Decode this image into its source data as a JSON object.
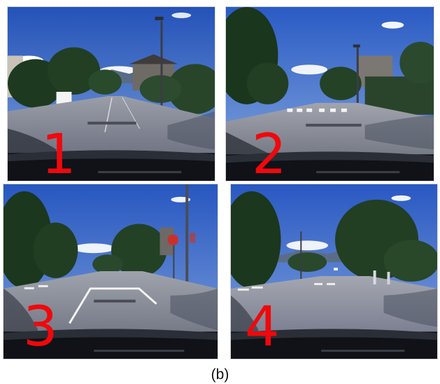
{
  "panels": [
    {
      "number": "1"
    },
    {
      "number": "2"
    },
    {
      "number": "3"
    },
    {
      "number": "4"
    }
  ],
  "caption": "(b)",
  "colors": {
    "label_red": "#f0080c",
    "sky": "#2f67c9",
    "foliage": "#1f3d22",
    "road": "#8c8f99"
  }
}
